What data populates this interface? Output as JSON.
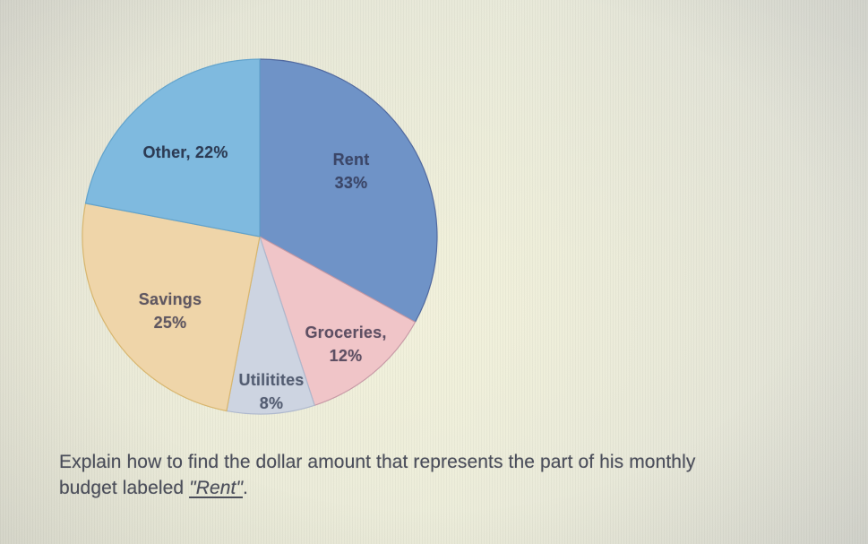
{
  "chart_data": {
    "type": "pie",
    "title": "",
    "start_angle_deg": 0,
    "direction": "clockwise",
    "labels_inside": true,
    "legend_position": "none",
    "categories": [
      "Rent",
      "Groceries",
      "Utilitites",
      "Savings",
      "Other"
    ],
    "values": [
      33,
      12,
      8,
      25,
      22
    ],
    "slices": [
      {
        "name": "Rent",
        "value": 33,
        "display": [
          "Rent",
          "33%"
        ],
        "color": "#6f93c7",
        "stroke": "#51699f",
        "text_color": "#3b4668"
      },
      {
        "name": "Groceries",
        "value": 12,
        "display": [
          "Groceries,",
          "12%"
        ],
        "color": "#f0c5c8",
        "stroke": "#c79aa6",
        "text_color": "#5e4f63"
      },
      {
        "name": "Utilitites",
        "value": 8,
        "display": [
          "Utilitites",
          "8%"
        ],
        "color": "#cdd4e1",
        "stroke": "#aeb8cd",
        "text_color": "#535d72"
      },
      {
        "name": "Savings",
        "value": 25,
        "display": [
          "Savings",
          "25%"
        ],
        "color": "#efd5a9",
        "stroke": "#d8b66e",
        "text_color": "#5f5761"
      },
      {
        "name": "Other",
        "value": 22,
        "display": [
          "Other, 22%"
        ],
        "color": "#7fbadf",
        "stroke": "#62a3cc",
        "text_color": "#2c3b54"
      }
    ]
  },
  "question": {
    "line1": "Explain how to find the dollar amount that represents the part of his monthly",
    "line2_prefix": "budget labeled ",
    "line2_emphasis": "\"Rent\"",
    "line2_suffix": "."
  }
}
